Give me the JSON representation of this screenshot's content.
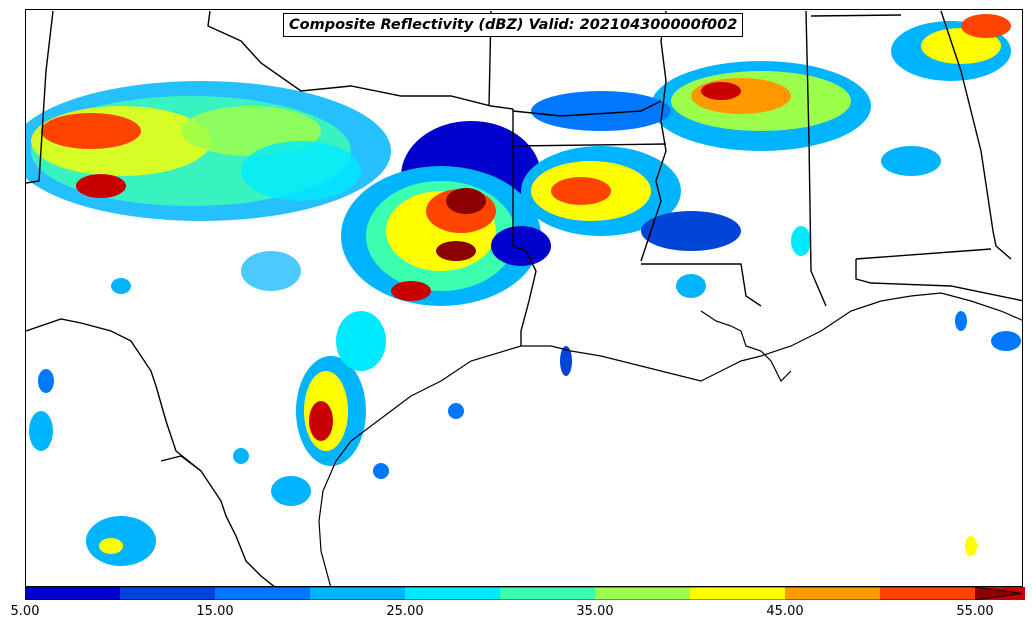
{
  "title": "Composite Reflectivity (dBZ) Valid: 202104300000f002",
  "colorbar": {
    "ticks": [
      "5.00",
      "15.00",
      "25.00",
      "35.00",
      "45.00",
      "55.00"
    ],
    "tick_values": [
      5,
      15,
      25,
      35,
      45,
      55
    ],
    "min": 5,
    "max": 55,
    "extend": "max",
    "colors": [
      "#0000cd",
      "#0044d8",
      "#0077ff",
      "#00b4ff",
      "#00eaff",
      "#3dffb0",
      "#9bff4b",
      "#ffff00",
      "#ff9900",
      "#ff4400",
      "#c80000",
      "#8b0000"
    ]
  },
  "palette": {
    "border": "#000000",
    "background": "#ffffff"
  }
}
